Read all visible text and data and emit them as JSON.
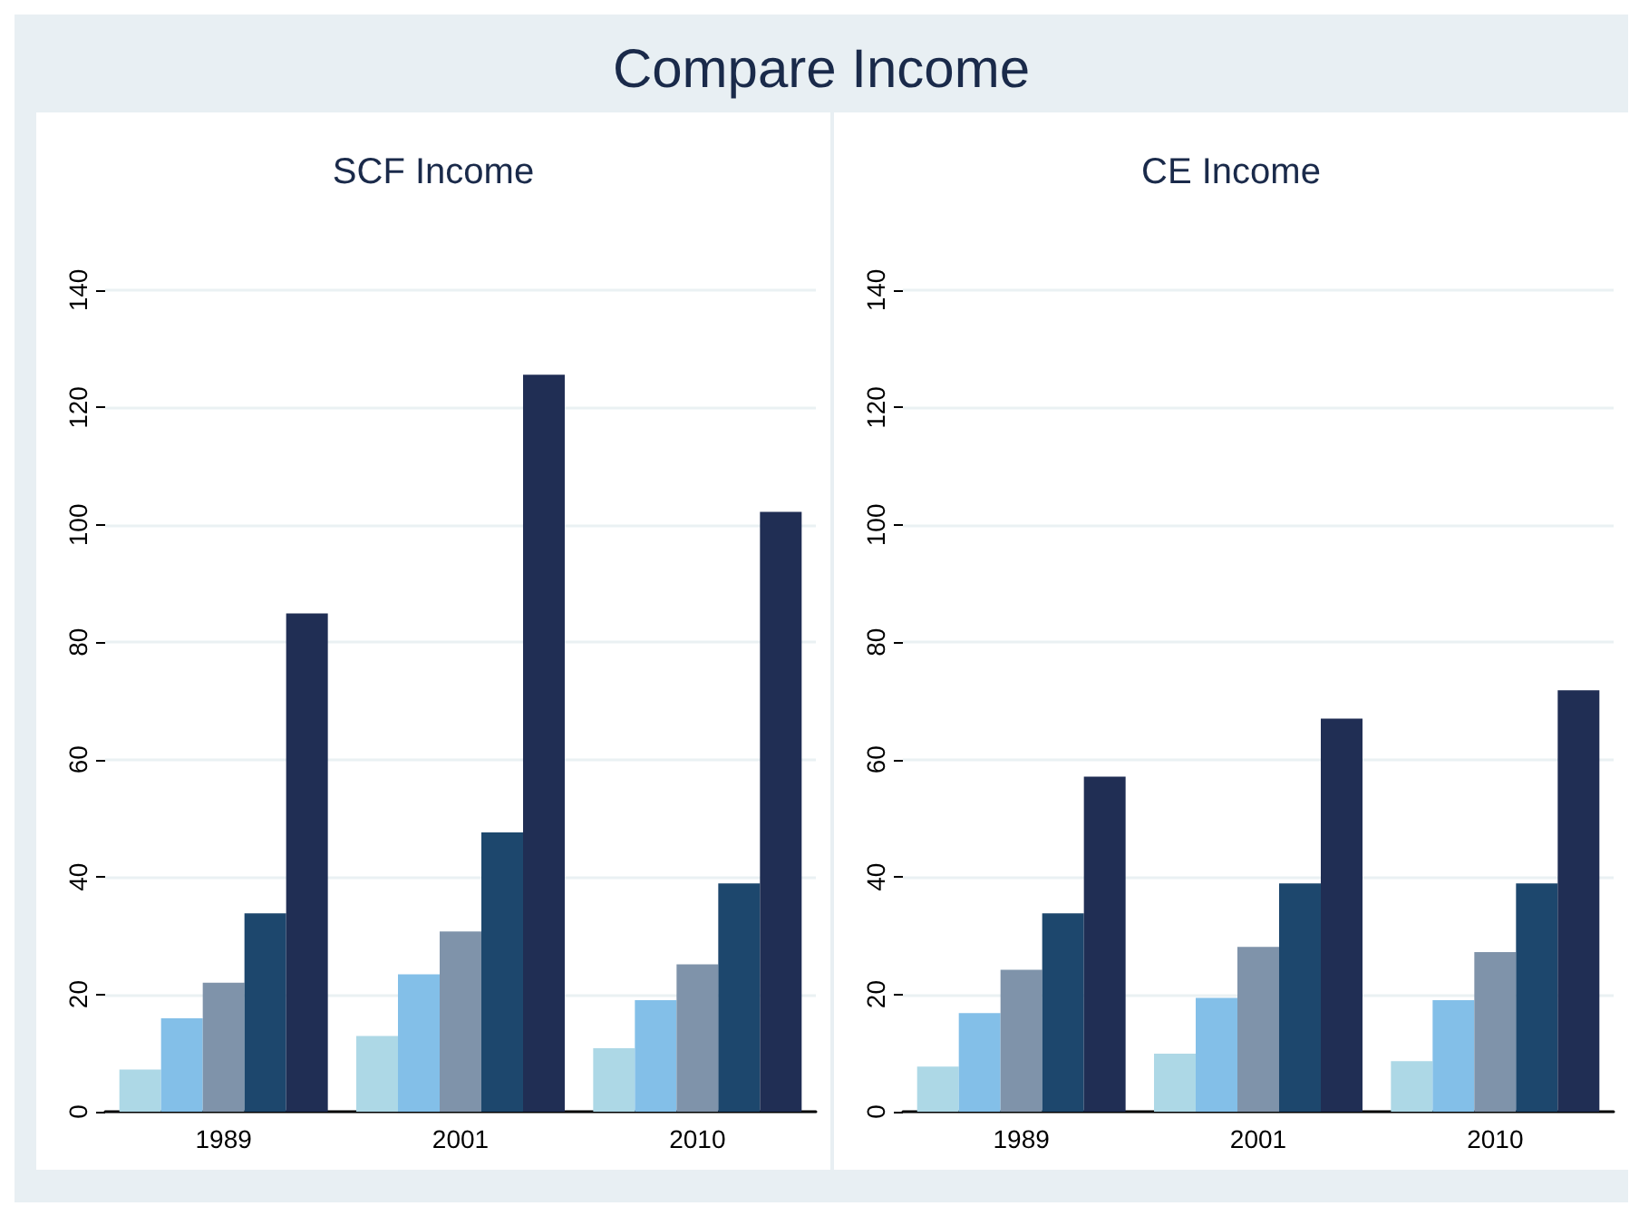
{
  "chart_data": [
    {
      "type": "bar",
      "title": "SCF Income",
      "annotations": [
        "Compare Income"
      ],
      "categories": [
        "1989",
        "2001",
        "2010"
      ],
      "series": [
        {
          "color": "#add8e6",
          "values": [
            7.2,
            12.9,
            10.8
          ]
        },
        {
          "color": "#83bfe8",
          "values": [
            15.9,
            23.4,
            19
          ]
        },
        {
          "color": "#7f93aa",
          "values": [
            22,
            30.7,
            25.1
          ]
        },
        {
          "color": "#1d476d",
          "values": [
            33.8,
            47.6,
            38.9
          ]
        },
        {
          "color": "#202e54",
          "values": [
            84.9,
            125.6,
            102.2
          ]
        }
      ],
      "ylim": [
        0,
        140
      ],
      "yticks": [
        0,
        20,
        40,
        60,
        80,
        100,
        120,
        140
      ],
      "grid": "y"
    },
    {
      "type": "bar",
      "title": "CE Income",
      "categories": [
        "1989",
        "2001",
        "2010"
      ],
      "series": [
        {
          "color": "#add8e6",
          "values": [
            7.7,
            9.9,
            8.6
          ]
        },
        {
          "color": "#83bfe8",
          "values": [
            16.8,
            19.4,
            19
          ]
        },
        {
          "color": "#7f93aa",
          "values": [
            24.2,
            28.1,
            27.2
          ]
        },
        {
          "color": "#1d476d",
          "values": [
            33.8,
            38.9,
            38.9
          ]
        },
        {
          "color": "#202e54",
          "values": [
            57.1,
            67,
            71.8
          ]
        }
      ],
      "ylim": [
        0,
        140
      ],
      "yticks": [
        0,
        20,
        40,
        60,
        80,
        100,
        120,
        140
      ],
      "grid": "y"
    }
  ]
}
